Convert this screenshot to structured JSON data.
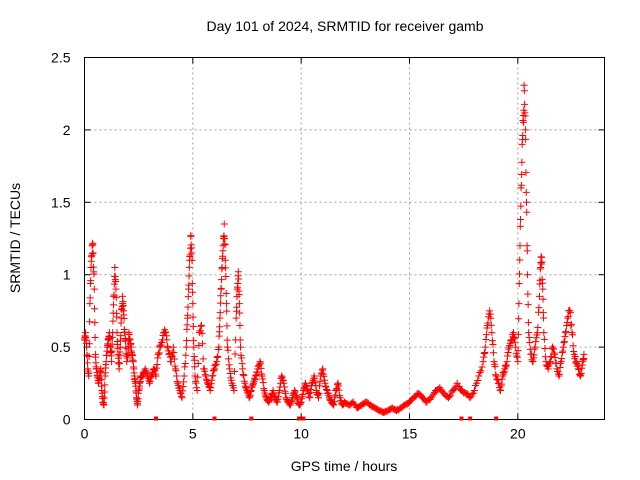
{
  "chart_data": {
    "type": "scatter",
    "title": "Day 101 of 2024, SRMTID for receiver gamb",
    "xlabel": "GPS time / hours",
    "ylabel": "SRMTID / TECUs",
    "xlim": [
      0,
      24
    ],
    "ylim": [
      0,
      2.5
    ],
    "xticks": [
      0,
      5,
      10,
      15,
      20
    ],
    "yticks": [
      0,
      0.5,
      1,
      1.5,
      2,
      2.5
    ],
    "xtick_labels": [
      "0",
      "5",
      "10",
      "15",
      "20"
    ],
    "ytick_labels": [
      "0",
      "0.5",
      "1",
      "1.5",
      "2",
      "2.5"
    ],
    "grid": true,
    "marker": "+",
    "color": "#ff0000",
    "series": [
      {
        "name": "SRMTID",
        "points": [
          [
            0.0,
            0.55
          ],
          [
            0.05,
            0.6
          ],
          [
            0.1,
            0.5
          ],
          [
            0.15,
            0.35
          ],
          [
            0.2,
            0.3
          ],
          [
            0.25,
            0.8
          ],
          [
            0.3,
            1.05
          ],
          [
            0.35,
            1.2
          ],
          [
            0.4,
            1.15
          ],
          [
            0.45,
            0.9
          ],
          [
            0.5,
            0.45
          ],
          [
            0.55,
            0.35
          ],
          [
            0.6,
            0.3
          ],
          [
            0.65,
            0.25
          ],
          [
            0.7,
            0.3
          ],
          [
            0.75,
            0.35
          ],
          [
            0.8,
            0.2
          ],
          [
            0.85,
            0.12
          ],
          [
            0.9,
            0.1
          ],
          [
            0.95,
            0.3
          ],
          [
            1.0,
            0.4
          ],
          [
            1.05,
            0.5
          ],
          [
            1.1,
            0.55
          ],
          [
            1.15,
            0.6
          ],
          [
            1.2,
            0.5
          ],
          [
            1.25,
            0.4
          ],
          [
            1.3,
            0.6
          ],
          [
            1.35,
            0.85
          ],
          [
            1.4,
            1.05
          ],
          [
            1.45,
            0.9
          ],
          [
            1.5,
            0.6
          ],
          [
            1.55,
            0.45
          ],
          [
            1.6,
            0.35
          ],
          [
            1.65,
            0.5
          ],
          [
            1.7,
            0.7
          ],
          [
            1.75,
            0.85
          ],
          [
            1.8,
            0.75
          ],
          [
            1.85,
            0.6
          ],
          [
            1.9,
            0.55
          ],
          [
            1.95,
            0.4
          ],
          [
            2.0,
            0.45
          ],
          [
            2.05,
            0.6
          ],
          [
            2.1,
            0.55
          ],
          [
            2.15,
            0.5
          ],
          [
            2.2,
            0.45
          ],
          [
            2.25,
            0.4
          ],
          [
            2.3,
            0.3
          ],
          [
            2.35,
            0.25
          ],
          [
            2.4,
            0.15
          ],
          [
            2.45,
            0.1
          ],
          [
            2.5,
            0.2
          ],
          [
            2.55,
            0.25
          ],
          [
            2.6,
            0.3
          ],
          [
            2.7,
            0.3
          ],
          [
            2.8,
            0.35
          ],
          [
            2.9,
            0.3
          ],
          [
            3.0,
            0.25
          ],
          [
            3.1,
            0.3
          ],
          [
            3.2,
            0.35
          ],
          [
            3.3,
            0.3
          ],
          [
            3.4,
            0.45
          ],
          [
            3.5,
            0.5
          ],
          [
            3.6,
            0.55
          ],
          [
            3.7,
            0.62
          ],
          [
            3.8,
            0.55
          ],
          [
            3.9,
            0.45
          ],
          [
            4.0,
            0.4
          ],
          [
            4.1,
            0.5
          ],
          [
            4.2,
            0.35
          ],
          [
            4.3,
            0.25
          ],
          [
            4.4,
            0.2
          ],
          [
            4.5,
            0.15
          ],
          [
            4.6,
            0.3
          ],
          [
            4.7,
            0.5
          ],
          [
            4.75,
            0.7
          ],
          [
            4.8,
            0.9
          ],
          [
            4.85,
            1.1
          ],
          [
            4.9,
            1.27
          ],
          [
            4.95,
            1.15
          ],
          [
            5.0,
            0.8
          ],
          [
            5.05,
            0.5
          ],
          [
            5.1,
            0.3
          ],
          [
            5.2,
            0.2
          ],
          [
            5.3,
            0.6
          ],
          [
            5.4,
            0.65
          ],
          [
            5.5,
            0.35
          ],
          [
            5.6,
            0.3
          ],
          [
            5.7,
            0.25
          ],
          [
            5.8,
            0.2
          ],
          [
            5.9,
            0.3
          ],
          [
            6.0,
            0.35
          ],
          [
            6.1,
            0.4
          ],
          [
            6.2,
            0.5
          ],
          [
            6.25,
            0.7
          ],
          [
            6.3,
            0.9
          ],
          [
            6.35,
            1.05
          ],
          [
            6.4,
            1.2
          ],
          [
            6.45,
            1.35
          ],
          [
            6.5,
            1.1
          ],
          [
            6.55,
            0.8
          ],
          [
            6.6,
            0.5
          ],
          [
            6.7,
            0.35
          ],
          [
            6.8,
            0.25
          ],
          [
            6.9,
            0.2
          ],
          [
            7.0,
            0.7
          ],
          [
            7.05,
            0.9
          ],
          [
            7.1,
            1.02
          ],
          [
            7.15,
            0.8
          ],
          [
            7.2,
            0.5
          ],
          [
            7.3,
            0.35
          ],
          [
            7.4,
            0.25
          ],
          [
            7.5,
            0.2
          ],
          [
            7.6,
            0.15
          ],
          [
            7.7,
            0.2
          ],
          [
            7.8,
            0.25
          ],
          [
            7.9,
            0.3
          ],
          [
            8.0,
            0.35
          ],
          [
            8.1,
            0.4
          ],
          [
            8.2,
            0.3
          ],
          [
            8.3,
            0.2
          ],
          [
            8.4,
            0.15
          ],
          [
            8.5,
            0.12
          ],
          [
            8.6,
            0.15
          ],
          [
            8.7,
            0.2
          ],
          [
            8.8,
            0.15
          ],
          [
            8.9,
            0.12
          ],
          [
            9.0,
            0.2
          ],
          [
            9.1,
            0.3
          ],
          [
            9.2,
            0.25
          ],
          [
            9.3,
            0.15
          ],
          [
            9.4,
            0.12
          ],
          [
            9.5,
            0.1
          ],
          [
            9.6,
            0.15
          ],
          [
            9.7,
            0.2
          ],
          [
            9.8,
            0.15
          ],
          [
            9.9,
            0.1
          ],
          [
            10.0,
            0.12
          ],
          [
            10.1,
            0.2
          ],
          [
            10.2,
            0.25
          ],
          [
            10.3,
            0.2
          ],
          [
            10.4,
            0.15
          ],
          [
            10.5,
            0.25
          ],
          [
            10.6,
            0.3
          ],
          [
            10.7,
            0.2
          ],
          [
            10.8,
            0.15
          ],
          [
            10.9,
            0.3
          ],
          [
            11.0,
            0.35
          ],
          [
            11.1,
            0.25
          ],
          [
            11.2,
            0.2
          ],
          [
            11.3,
            0.15
          ],
          [
            11.4,
            0.12
          ],
          [
            11.5,
            0.1
          ],
          [
            11.6,
            0.2
          ],
          [
            11.7,
            0.25
          ],
          [
            11.8,
            0.15
          ],
          [
            11.9,
            0.1
          ],
          [
            12.0,
            0.12
          ],
          [
            12.2,
            0.1
          ],
          [
            12.4,
            0.12
          ],
          [
            12.6,
            0.08
          ],
          [
            12.8,
            0.1
          ],
          [
            13.0,
            0.12
          ],
          [
            13.2,
            0.1
          ],
          [
            13.4,
            0.08
          ],
          [
            13.6,
            0.06
          ],
          [
            13.8,
            0.05
          ],
          [
            14.0,
            0.06
          ],
          [
            14.2,
            0.08
          ],
          [
            14.4,
            0.06
          ],
          [
            14.6,
            0.08
          ],
          [
            14.8,
            0.1
          ],
          [
            15.0,
            0.12
          ],
          [
            15.2,
            0.15
          ],
          [
            15.4,
            0.18
          ],
          [
            15.6,
            0.15
          ],
          [
            15.8,
            0.12
          ],
          [
            16.0,
            0.15
          ],
          [
            16.2,
            0.2
          ],
          [
            16.4,
            0.22
          ],
          [
            16.6,
            0.18
          ],
          [
            16.8,
            0.15
          ],
          [
            17.0,
            0.2
          ],
          [
            17.2,
            0.25
          ],
          [
            17.4,
            0.2
          ],
          [
            17.6,
            0.18
          ],
          [
            17.8,
            0.15
          ],
          [
            18.0,
            0.2
          ],
          [
            18.2,
            0.3
          ],
          [
            18.4,
            0.4
          ],
          [
            18.5,
            0.5
          ],
          [
            18.6,
            0.65
          ],
          [
            18.7,
            0.75
          ],
          [
            18.8,
            0.6
          ],
          [
            18.9,
            0.4
          ],
          [
            19.0,
            0.3
          ],
          [
            19.1,
            0.25
          ],
          [
            19.2,
            0.2
          ],
          [
            19.3,
            0.3
          ],
          [
            19.4,
            0.35
          ],
          [
            19.5,
            0.4
          ],
          [
            19.6,
            0.5
          ],
          [
            19.7,
            0.55
          ],
          [
            19.8,
            0.6
          ],
          [
            19.9,
            0.5
          ],
          [
            20.0,
            0.4
          ],
          [
            20.05,
            0.8
          ],
          [
            20.1,
            1.2
          ],
          [
            20.15,
            1.6
          ],
          [
            20.2,
            1.9
          ],
          [
            20.25,
            2.1
          ],
          [
            20.3,
            2.27
          ],
          [
            20.35,
            2.0
          ],
          [
            20.4,
            1.5
          ],
          [
            20.45,
            1.0
          ],
          [
            20.5,
            0.6
          ],
          [
            20.6,
            0.45
          ],
          [
            20.7,
            0.4
          ],
          [
            20.8,
            0.5
          ],
          [
            20.9,
            0.6
          ],
          [
            21.0,
            0.85
          ],
          [
            21.05,
            1.05
          ],
          [
            21.1,
            1.12
          ],
          [
            21.15,
            0.9
          ],
          [
            21.2,
            0.6
          ],
          [
            21.3,
            0.4
          ],
          [
            21.4,
            0.35
          ],
          [
            21.5,
            0.4
          ],
          [
            21.6,
            0.5
          ],
          [
            21.7,
            0.45
          ],
          [
            21.8,
            0.35
          ],
          [
            21.9,
            0.3
          ],
          [
            22.0,
            0.4
          ],
          [
            22.1,
            0.5
          ],
          [
            22.2,
            0.6
          ],
          [
            22.3,
            0.7
          ],
          [
            22.4,
            0.75
          ],
          [
            22.5,
            0.6
          ],
          [
            22.6,
            0.45
          ],
          [
            22.7,
            0.4
          ],
          [
            22.8,
            0.35
          ],
          [
            22.9,
            0.3
          ],
          [
            23.0,
            0.4
          ],
          [
            23.05,
            0.45
          ]
        ]
      }
    ],
    "zero_markers_x": [
      3.3,
      6.0,
      7.7,
      9.9,
      10.1,
      17.4,
      17.8,
      19.0
    ]
  }
}
